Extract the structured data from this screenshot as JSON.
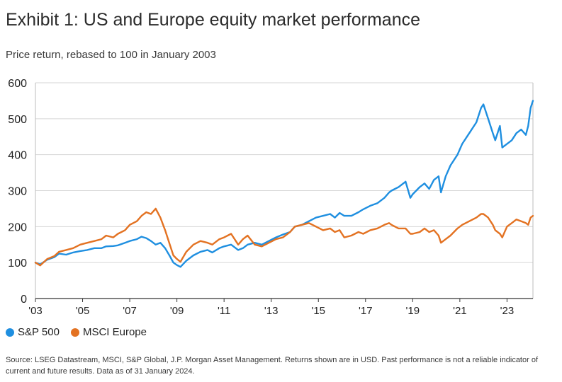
{
  "header": {
    "title": "Exhibit 1: US and Europe equity market performance",
    "subtitle": "Price return, rebased to 100 in January 2003"
  },
  "footer": {
    "source": "Source: LSEG Datastream, MSCI, S&P Global, J.P. Morgan Asset Management. Returns shown are in USD. Past performance is not a reliable indicator of current and future results. Data as of 31 January 2024."
  },
  "chart_data": {
    "type": "line",
    "title": "Exhibit 1: US and Europe equity market performance",
    "subtitle": "Price return, rebased to 100 in January 2003",
    "xlabel": "",
    "ylabel": "",
    "xlim": [
      2003.0,
      2024.1
    ],
    "ylim": [
      0,
      600
    ],
    "y_ticks": [
      0,
      100,
      200,
      300,
      400,
      500,
      600
    ],
    "x_ticks": [
      {
        "value": 2003,
        "label": "'03"
      },
      {
        "value": 2005,
        "label": "'05"
      },
      {
        "value": 2007,
        "label": "'07"
      },
      {
        "value": 2009,
        "label": "'09"
      },
      {
        "value": 2011,
        "label": "'11"
      },
      {
        "value": 2013,
        "label": "'13"
      },
      {
        "value": 2015,
        "label": "'15"
      },
      {
        "value": 2017,
        "label": "'17"
      },
      {
        "value": 2019,
        "label": "'19"
      },
      {
        "value": 2021,
        "label": "'21"
      },
      {
        "value": 2023,
        "label": "'23"
      }
    ],
    "grid": "horizontal",
    "legend_position": "bottom-left",
    "series": [
      {
        "name": "S&P 500",
        "color": "#1f8fe0",
        "x": [
          2003.0,
          2003.2,
          2003.5,
          2003.8,
          2004.0,
          2004.3,
          2004.6,
          2004.9,
          2005.2,
          2005.5,
          2005.8,
          2006.0,
          2006.3,
          2006.5,
          2006.8,
          2007.0,
          2007.3,
          2007.5,
          2007.7,
          2007.9,
          2008.1,
          2008.3,
          2008.5,
          2008.7,
          2008.85,
          2009.0,
          2009.15,
          2009.4,
          2009.7,
          2010.0,
          2010.3,
          2010.5,
          2010.8,
          2011.0,
          2011.3,
          2011.6,
          2011.8,
          2012.0,
          2012.3,
          2012.6,
          2012.9,
          2013.2,
          2013.5,
          2013.8,
          2014.0,
          2014.3,
          2014.6,
          2014.9,
          2015.2,
          2015.5,
          2015.7,
          2015.9,
          2016.1,
          2016.4,
          2016.7,
          2016.9,
          2017.2,
          2017.5,
          2017.8,
          2018.0,
          2018.1,
          2018.4,
          2018.7,
          2018.9,
          2019.0,
          2019.3,
          2019.5,
          2019.7,
          2019.9,
          2020.1,
          2020.2,
          2020.4,
          2020.6,
          2020.9,
          2021.1,
          2021.4,
          2021.7,
          2021.9,
          2022.0,
          2022.2,
          2022.4,
          2022.5,
          2022.7,
          2022.8,
          2023.0,
          2023.2,
          2023.4,
          2023.6,
          2023.8,
          2023.9,
          2024.0,
          2024.1
        ],
        "values": [
          100,
          95,
          108,
          115,
          125,
          122,
          128,
          132,
          135,
          140,
          140,
          145,
          146,
          148,
          155,
          160,
          165,
          172,
          168,
          160,
          150,
          155,
          140,
          118,
          100,
          93,
          88,
          105,
          120,
          130,
          135,
          128,
          140,
          145,
          150,
          135,
          140,
          150,
          155,
          150,
          160,
          170,
          178,
          185,
          200,
          205,
          215,
          225,
          230,
          235,
          225,
          238,
          230,
          230,
          240,
          248,
          258,
          265,
          280,
          295,
          300,
          310,
          325,
          280,
          290,
          310,
          320,
          305,
          330,
          340,
          295,
          340,
          370,
          400,
          430,
          460,
          490,
          530,
          540,
          500,
          460,
          440,
          480,
          420,
          430,
          440,
          460,
          470,
          455,
          480,
          530,
          550
        ]
      },
      {
        "name": "MSCI Europe",
        "color": "#e37222",
        "x": [
          2003.0,
          2003.2,
          2003.5,
          2003.8,
          2004.0,
          2004.3,
          2004.6,
          2004.9,
          2005.2,
          2005.5,
          2005.8,
          2006.0,
          2006.3,
          2006.5,
          2006.8,
          2007.0,
          2007.3,
          2007.5,
          2007.7,
          2007.9,
          2008.1,
          2008.3,
          2008.5,
          2008.7,
          2008.85,
          2009.0,
          2009.15,
          2009.4,
          2009.7,
          2010.0,
          2010.3,
          2010.5,
          2010.8,
          2011.0,
          2011.3,
          2011.6,
          2011.8,
          2012.0,
          2012.3,
          2012.6,
          2012.9,
          2013.2,
          2013.5,
          2013.8,
          2014.0,
          2014.3,
          2014.6,
          2014.9,
          2015.2,
          2015.5,
          2015.7,
          2015.9,
          2016.1,
          2016.4,
          2016.7,
          2016.9,
          2017.2,
          2017.5,
          2017.8,
          2018.0,
          2018.1,
          2018.4,
          2018.7,
          2018.9,
          2019.0,
          2019.3,
          2019.5,
          2019.7,
          2019.9,
          2020.1,
          2020.2,
          2020.4,
          2020.6,
          2020.9,
          2021.1,
          2021.4,
          2021.7,
          2021.9,
          2022.0,
          2022.2,
          2022.4,
          2022.5,
          2022.7,
          2022.8,
          2023.0,
          2023.2,
          2023.4,
          2023.6,
          2023.8,
          2023.9,
          2024.0,
          2024.1
        ],
        "values": [
          100,
          92,
          110,
          118,
          130,
          135,
          140,
          150,
          155,
          160,
          165,
          175,
          170,
          180,
          190,
          205,
          215,
          230,
          240,
          235,
          250,
          225,
          190,
          150,
          120,
          110,
          102,
          130,
          150,
          160,
          155,
          150,
          165,
          170,
          180,
          150,
          165,
          175,
          150,
          145,
          155,
          165,
          170,
          185,
          200,
          205,
          210,
          200,
          190,
          195,
          185,
          190,
          170,
          175,
          185,
          180,
          190,
          195,
          205,
          210,
          205,
          195,
          195,
          180,
          180,
          185,
          195,
          185,
          190,
          175,
          155,
          165,
          175,
          195,
          205,
          215,
          225,
          235,
          235,
          225,
          205,
          190,
          180,
          170,
          200,
          210,
          220,
          215,
          210,
          205,
          225,
          230
        ]
      }
    ]
  }
}
